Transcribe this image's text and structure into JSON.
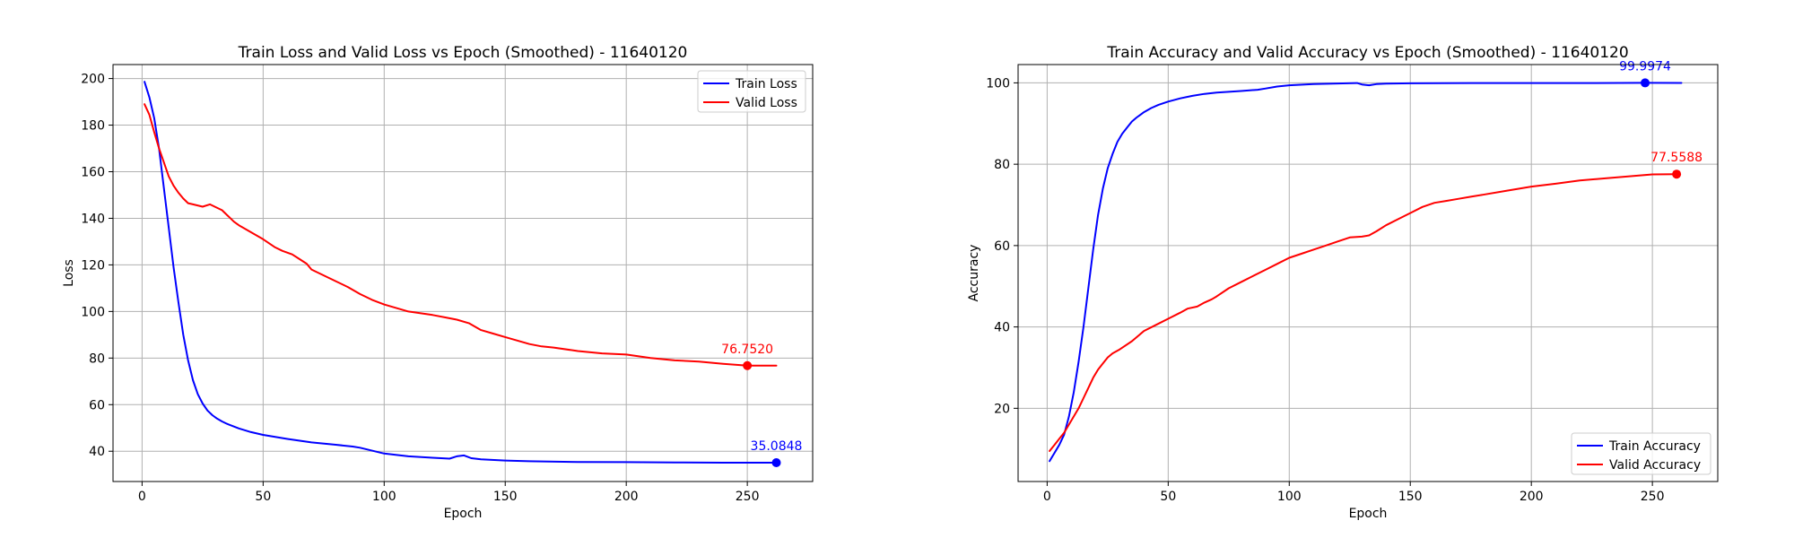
{
  "chart_data": [
    {
      "type": "line",
      "title": "Train Loss and Valid Loss vs Epoch (Smoothed) - 11640120",
      "xlabel": "Epoch",
      "ylabel": "Loss",
      "xlim": [
        -12,
        277
      ],
      "ylim": [
        27,
        206
      ],
      "xticks": [
        0,
        50,
        100,
        150,
        200,
        250
      ],
      "yticks": [
        40,
        60,
        80,
        100,
        120,
        140,
        160,
        180,
        200
      ],
      "grid": true,
      "legend": "upper right",
      "series": [
        {
          "name": "Train Loss",
          "color": "#0000ff",
          "x": [
            1,
            3,
            5,
            7,
            9,
            11,
            13,
            15,
            17,
            19,
            21,
            23,
            25,
            27,
            29,
            31,
            33,
            35,
            40,
            45,
            50,
            60,
            70,
            80,
            87,
            90,
            100,
            110,
            120,
            127,
            130,
            133,
            136,
            140,
            150,
            160,
            180,
            200,
            220,
            240,
            262
          ],
          "values": [
            198.6,
            192.0,
            183.0,
            170.0,
            153.0,
            136.0,
            119.0,
            104.0,
            90.0,
            79.0,
            70.5,
            64.5,
            60.5,
            57.5,
            55.5,
            54.0,
            52.8,
            51.8,
            49.8,
            48.2,
            47.0,
            45.3,
            43.8,
            42.8,
            42.0,
            41.5,
            39.0,
            37.8,
            37.2,
            36.8,
            37.8,
            38.2,
            37.0,
            36.5,
            36.0,
            35.7,
            35.4,
            35.3,
            35.2,
            35.1,
            35.0848
          ]
        },
        {
          "name": "Valid Loss",
          "color": "#ff0000",
          "x": [
            1,
            3,
            5,
            7,
            9,
            11,
            13,
            15,
            17,
            19,
            21,
            25,
            28,
            30,
            33,
            35,
            38,
            40,
            45,
            50,
            55,
            58,
            62,
            65,
            68,
            70,
            75,
            80,
            85,
            90,
            95,
            100,
            110,
            120,
            125,
            130,
            135,
            140,
            145,
            150,
            155,
            160,
            165,
            170,
            180,
            190,
            200,
            210,
            220,
            230,
            240,
            250,
            262
          ],
          "values": [
            189.0,
            184.5,
            177.0,
            170.0,
            164.0,
            158.0,
            154.0,
            151.0,
            148.5,
            146.5,
            146.0,
            145.0,
            146.0,
            145.0,
            143.5,
            141.5,
            138.5,
            137.0,
            134.0,
            131.0,
            127.5,
            126.0,
            124.5,
            122.5,
            120.5,
            118.0,
            115.5,
            113.0,
            110.5,
            107.5,
            105.0,
            103.0,
            100.0,
            98.5,
            97.5,
            96.5,
            95.0,
            92.0,
            90.5,
            89.0,
            87.5,
            86.0,
            85.0,
            84.5,
            83.0,
            82.0,
            81.5,
            80.0,
            79.0,
            78.5,
            77.5,
            76.752,
            76.75
          ]
        }
      ],
      "annotations": [
        {
          "text": "35.0848",
          "x": 262,
          "y": 35.0848,
          "color": "#0000ff"
        },
        {
          "text": "76.7520",
          "x": 250,
          "y": 76.752,
          "color": "#ff0000"
        }
      ]
    },
    {
      "type": "line",
      "title": "Train Accuracy and Valid Accuracy vs Epoch (Smoothed) - 11640120",
      "xlabel": "Epoch",
      "ylabel": "Accuracy",
      "xlim": [
        -12,
        277
      ],
      "ylim": [
        2,
        104.5
      ],
      "xticks": [
        0,
        50,
        100,
        150,
        200,
        250
      ],
      "yticks": [
        20,
        40,
        60,
        80,
        100
      ],
      "grid": true,
      "legend": "lower right",
      "series": [
        {
          "name": "Train Accuracy",
          "color": "#0000ff",
          "x": [
            1,
            3,
            5,
            7,
            9,
            11,
            13,
            15,
            17,
            19,
            21,
            23,
            25,
            27,
            29,
            31,
            33,
            35,
            37,
            40,
            43,
            46,
            50,
            55,
            60,
            65,
            70,
            80,
            87,
            90,
            95,
            100,
            110,
            120,
            128,
            130,
            133,
            136,
            140,
            150,
            175,
            200,
            225,
            247,
            262
          ],
          "values": [
            7.0,
            9.0,
            11.0,
            13.5,
            18.0,
            24.0,
            31.5,
            40.0,
            49.5,
            59.0,
            67.5,
            74.0,
            79.0,
            82.5,
            85.5,
            87.5,
            89.0,
            90.5,
            91.5,
            92.8,
            93.8,
            94.6,
            95.4,
            96.2,
            96.8,
            97.3,
            97.6,
            98.0,
            98.3,
            98.6,
            99.1,
            99.4,
            99.7,
            99.85,
            99.95,
            99.6,
            99.4,
            99.7,
            99.8,
            99.9,
            99.95,
            99.97,
            99.97,
            99.9974,
            99.99
          ]
        },
        {
          "name": "Valid Accuracy",
          "color": "#ff0000",
          "x": [
            1,
            3,
            5,
            7,
            9,
            11,
            13,
            15,
            17,
            19,
            21,
            23,
            25,
            27,
            30,
            35,
            38,
            40,
            45,
            50,
            55,
            58,
            62,
            65,
            68,
            70,
            75,
            80,
            85,
            90,
            95,
            100,
            105,
            110,
            115,
            120,
            125,
            130,
            133,
            136,
            140,
            145,
            150,
            155,
            160,
            165,
            170,
            175,
            180,
            190,
            200,
            210,
            220,
            230,
            240,
            250,
            260
          ],
          "values": [
            9.5,
            11.0,
            12.5,
            14.0,
            16.0,
            18.0,
            20.0,
            22.5,
            25.0,
            27.5,
            29.5,
            31.0,
            32.5,
            33.5,
            34.5,
            36.5,
            38.0,
            39.0,
            40.5,
            42.0,
            43.5,
            44.5,
            45.0,
            46.0,
            46.8,
            47.5,
            49.5,
            51.0,
            52.5,
            54.0,
            55.5,
            57.0,
            58.0,
            59.0,
            60.0,
            61.0,
            62.0,
            62.2,
            62.5,
            63.5,
            65.0,
            66.5,
            68.0,
            69.5,
            70.5,
            71.0,
            71.5,
            72.0,
            72.5,
            73.5,
            74.5,
            75.2,
            76.0,
            76.5,
            77.0,
            77.5,
            77.5588
          ]
        }
      ],
      "annotations": [
        {
          "text": "99.9974",
          "x": 247,
          "y": 99.9974,
          "color": "#0000ff"
        },
        {
          "text": "77.5588",
          "x": 260,
          "y": 77.5588,
          "color": "#ff0000"
        }
      ]
    }
  ]
}
